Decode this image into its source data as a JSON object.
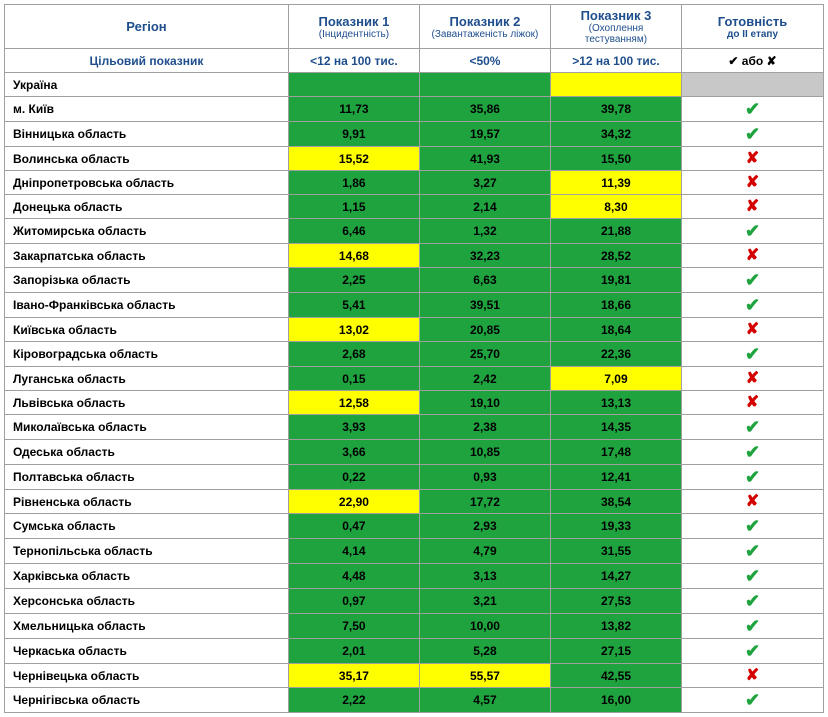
{
  "colors": {
    "green": "#1fa33e",
    "yellow": "#ffff00",
    "grey": "#c8c8c8",
    "white": "#ffffff",
    "header_text": "#1f4e8c",
    "check": "#1fa33e",
    "cross": "#d40000"
  },
  "header": {
    "region": "Регіон",
    "ind1": "Показник 1",
    "ind1_sub": "(Інцидентність)",
    "ind2": "Показник 2",
    "ind2_sub": "(Завантаженість ліжок)",
    "ind3": "Показник 3",
    "ind3_sub": "(Охоплення тестуванням)",
    "ready": "Готовність",
    "ready_sub": "до ІІ етапу"
  },
  "target_row": {
    "label": "Цільовий показник",
    "ind1": "<12 на 100 тис.",
    "ind2": "<50%",
    "ind3": ">12 на 100 тис.",
    "ready_legend_check": "✔",
    "ready_legend_or": " або ",
    "ready_legend_cross": "✘"
  },
  "ukraine_row": {
    "label": "Україна",
    "ind1_color": "green",
    "ind2_color": "green",
    "ind3_color": "yellow",
    "ready_color": "grey"
  },
  "rows": [
    {
      "region": "м. Київ",
      "v1": "11,73",
      "c1": "green",
      "v2": "35,86",
      "c2": "green",
      "v3": "39,78",
      "c3": "green",
      "ready": "check"
    },
    {
      "region": "Вінницька область",
      "v1": "9,91",
      "c1": "green",
      "v2": "19,57",
      "c2": "green",
      "v3": "34,32",
      "c3": "green",
      "ready": "check"
    },
    {
      "region": "Волинська область",
      "v1": "15,52",
      "c1": "yellow",
      "v2": "41,93",
      "c2": "green",
      "v3": "15,50",
      "c3": "green",
      "ready": "cross"
    },
    {
      "region": "Дніпропетровська область",
      "v1": "1,86",
      "c1": "green",
      "v2": "3,27",
      "c2": "green",
      "v3": "11,39",
      "c3": "yellow",
      "ready": "cross"
    },
    {
      "region": "Донецька область",
      "v1": "1,15",
      "c1": "green",
      "v2": "2,14",
      "c2": "green",
      "v3": "8,30",
      "c3": "yellow",
      "ready": "cross"
    },
    {
      "region": "Житомирська область",
      "v1": "6,46",
      "c1": "green",
      "v2": "1,32",
      "c2": "green",
      "v3": "21,88",
      "c3": "green",
      "ready": "check"
    },
    {
      "region": "Закарпатська область",
      "v1": "14,68",
      "c1": "yellow",
      "v2": "32,23",
      "c2": "green",
      "v3": "28,52",
      "c3": "green",
      "ready": "cross"
    },
    {
      "region": "Запорізька область",
      "v1": "2,25",
      "c1": "green",
      "v2": "6,63",
      "c2": "green",
      "v3": "19,81",
      "c3": "green",
      "ready": "check"
    },
    {
      "region": "Івано-Франківська область",
      "v1": "5,41",
      "c1": "green",
      "v2": "39,51",
      "c2": "green",
      "v3": "18,66",
      "c3": "green",
      "ready": "check"
    },
    {
      "region": "Київська область",
      "v1": "13,02",
      "c1": "yellow",
      "v2": "20,85",
      "c2": "green",
      "v3": "18,64",
      "c3": "green",
      "ready": "cross"
    },
    {
      "region": "Кіровоградська область",
      "v1": "2,68",
      "c1": "green",
      "v2": "25,70",
      "c2": "green",
      "v3": "22,36",
      "c3": "green",
      "ready": "check"
    },
    {
      "region": "Луганська область",
      "v1": "0,15",
      "c1": "green",
      "v2": "2,42",
      "c2": "green",
      "v3": "7,09",
      "c3": "yellow",
      "ready": "cross"
    },
    {
      "region": "Львівська область",
      "v1": "12,58",
      "c1": "yellow",
      "v2": "19,10",
      "c2": "green",
      "v3": "13,13",
      "c3": "green",
      "ready": "cross"
    },
    {
      "region": "Миколаївська область",
      "v1": "3,93",
      "c1": "green",
      "v2": "2,38",
      "c2": "green",
      "v3": "14,35",
      "c3": "green",
      "ready": "check"
    },
    {
      "region": "Одеська область",
      "v1": "3,66",
      "c1": "green",
      "v2": "10,85",
      "c2": "green",
      "v3": "17,48",
      "c3": "green",
      "ready": "check"
    },
    {
      "region": "Полтавська область",
      "v1": "0,22",
      "c1": "green",
      "v2": "0,93",
      "c2": "green",
      "v3": "12,41",
      "c3": "green",
      "ready": "check"
    },
    {
      "region": "Рівненська область",
      "v1": "22,90",
      "c1": "yellow",
      "v2": "17,72",
      "c2": "green",
      "v3": "38,54",
      "c3": "green",
      "ready": "cross"
    },
    {
      "region": "Сумська область",
      "v1": "0,47",
      "c1": "green",
      "v2": "2,93",
      "c2": "green",
      "v3": "19,33",
      "c3": "green",
      "ready": "check"
    },
    {
      "region": "Тернопільська область",
      "v1": "4,14",
      "c1": "green",
      "v2": "4,79",
      "c2": "green",
      "v3": "31,55",
      "c3": "green",
      "ready": "check"
    },
    {
      "region": "Харківська область",
      "v1": "4,48",
      "c1": "green",
      "v2": "3,13",
      "c2": "green",
      "v3": "14,27",
      "c3": "green",
      "ready": "check"
    },
    {
      "region": "Херсонська область",
      "v1": "0,97",
      "c1": "green",
      "v2": "3,21",
      "c2": "green",
      "v3": "27,53",
      "c3": "green",
      "ready": "check"
    },
    {
      "region": "Хмельницька область",
      "v1": "7,50",
      "c1": "green",
      "v2": "10,00",
      "c2": "green",
      "v3": "13,82",
      "c3": "green",
      "ready": "check"
    },
    {
      "region": "Черкаська область",
      "v1": "2,01",
      "c1": "green",
      "v2": "5,28",
      "c2": "green",
      "v3": "27,15",
      "c3": "green",
      "ready": "check"
    },
    {
      "region": "Чернівецька область",
      "v1": "35,17",
      "c1": "yellow",
      "v2": "55,57",
      "c2": "yellow",
      "v3": "42,55",
      "c3": "green",
      "ready": "cross"
    },
    {
      "region": "Чернігівська область",
      "v1": "2,22",
      "c1": "green",
      "v2": "4,57",
      "c2": "green",
      "v3": "16,00",
      "c3": "green",
      "ready": "check"
    }
  ],
  "icons": {
    "check": "✔",
    "cross": "✘"
  }
}
